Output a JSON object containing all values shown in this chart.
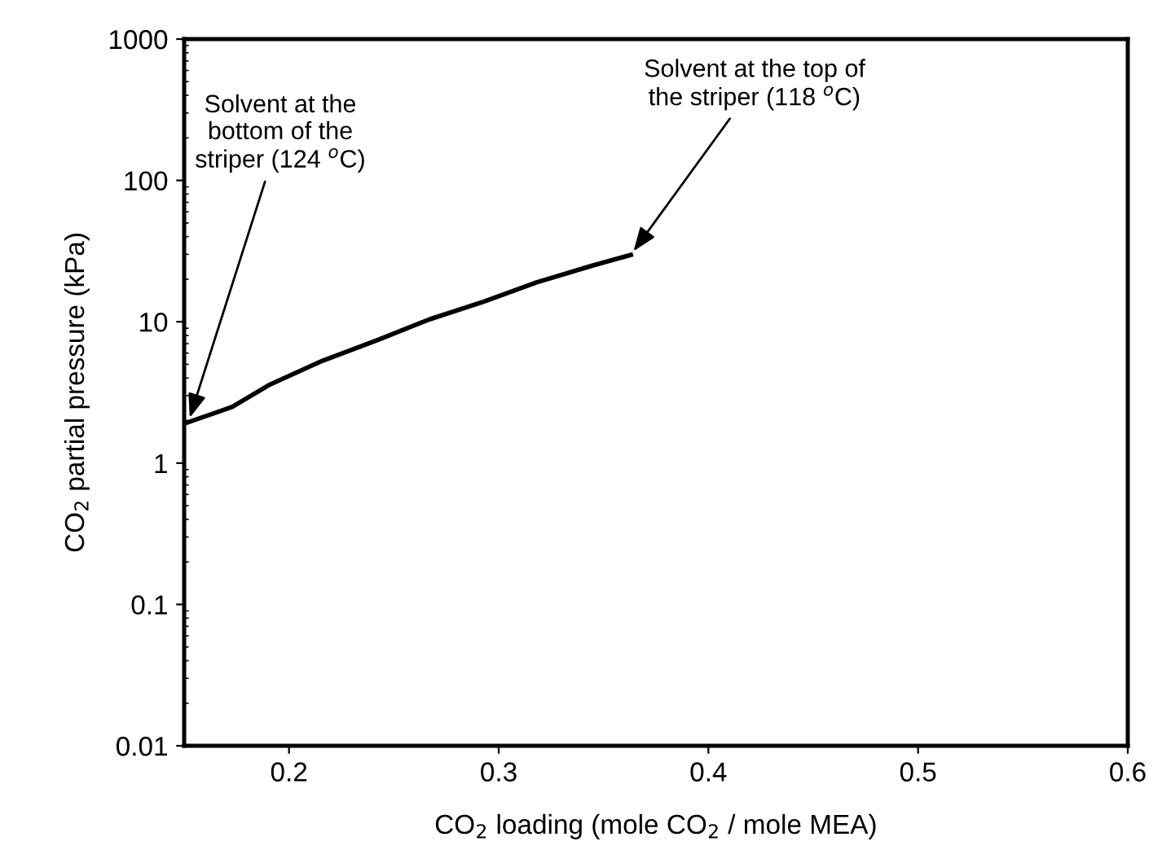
{
  "chart_data": {
    "type": "line",
    "xlabel": "CO$_{2}$ loading (mole CO$_{2}$ / mole MEA)",
    "ylabel": "CO$_{2}$ partial pressure (kPa)",
    "x": [
      0.15,
      0.173,
      0.191,
      0.216,
      0.242,
      0.267,
      0.293,
      0.318,
      0.344,
      0.363
    ],
    "series": [
      {
        "color": "#000000",
        "values": [
          1.9,
          2.5,
          3.6,
          5.3,
          7.4,
          10.4,
          13.9,
          19,
          24.8,
          29.7
        ]
      }
    ],
    "xlim": [
      0.15,
      0.6
    ],
    "xticks": [
      0.2,
      0.3,
      0.4,
      0.5,
      0.6
    ],
    "ylim": [
      0.01,
      1000
    ],
    "yticks": [
      0.01,
      0.1,
      1,
      10,
      100,
      1000
    ],
    "log": "y",
    "grid": false,
    "legend": false,
    "marker": "none",
    "line_style": "solid",
    "annotations": [
      {
        "text": "Solvent at the\nbottom of the\nstriper (124 $^{o}$C)",
        "x": 0.152,
        "y": 1.95
      },
      {
        "text": "Solvent at the top of\nthe striper (118 $^{o}$C)",
        "x": 0.363,
        "y": 29.7
      }
    ]
  }
}
